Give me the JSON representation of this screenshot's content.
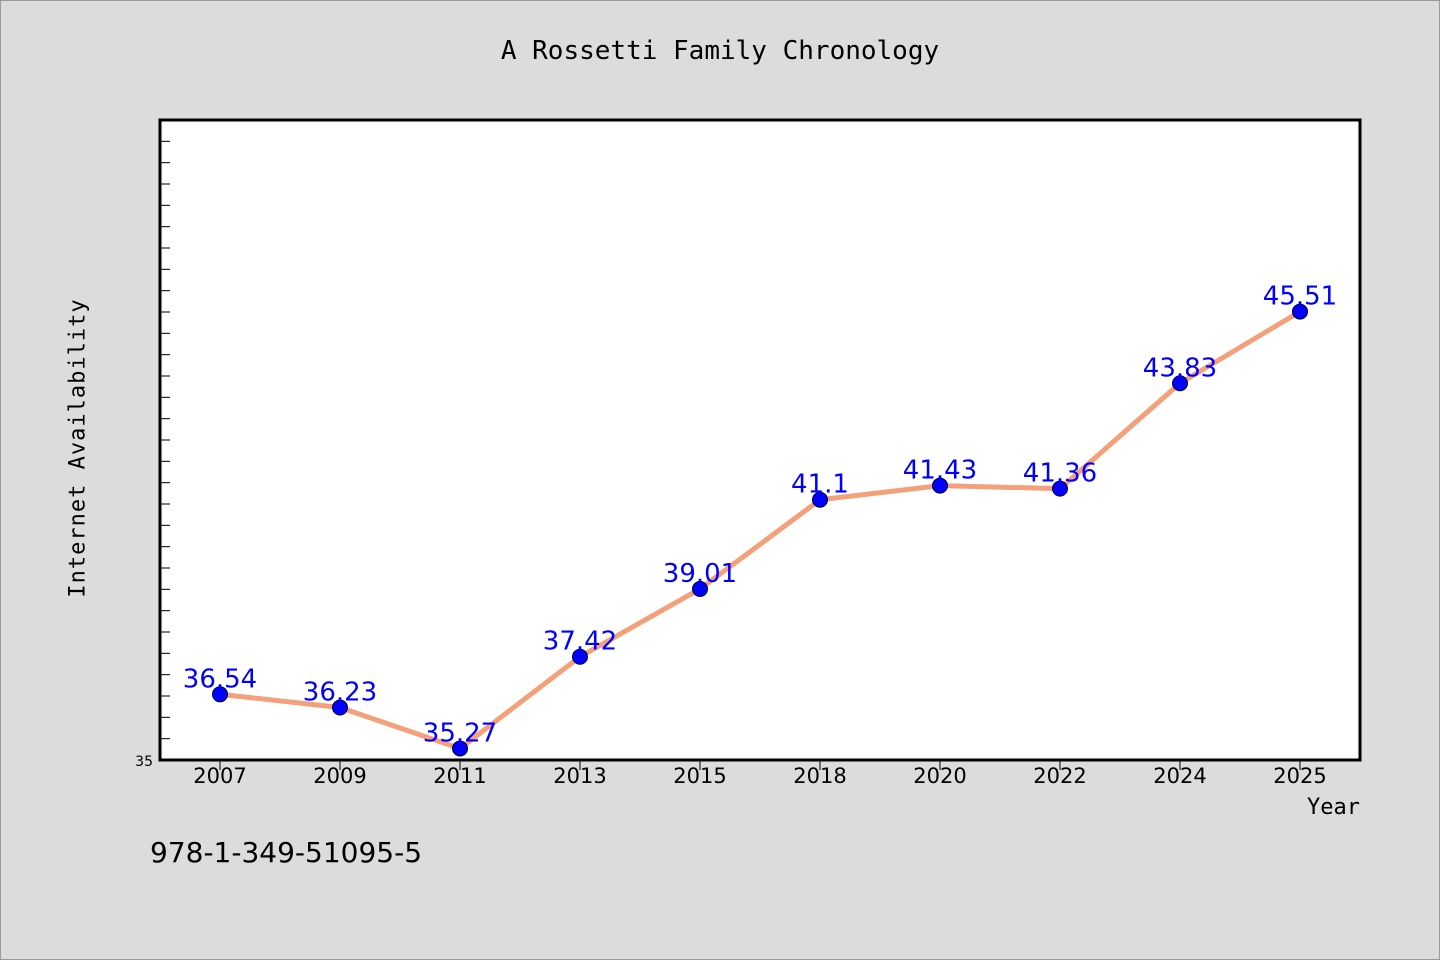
{
  "chart_data": {
    "type": "line",
    "title": "A Rossetti Family Chronology",
    "xlabel": "Year",
    "ylabel": "Internet Availability",
    "categories": [
      "2007",
      "2009",
      "2011",
      "2013",
      "2015",
      "2018",
      "2020",
      "2022",
      "2024",
      "2025"
    ],
    "series": [
      {
        "values": [
          36.54,
          36.23,
          35.27,
          37.42,
          39.01,
          41.1,
          41.43,
          41.36,
          43.83,
          45.51
        ],
        "labels": [
          "36.54",
          "36.23",
          "35.27",
          "37.42",
          "39.01",
          "41.1",
          "41.43",
          "41.36",
          "43.83",
          "45.51"
        ]
      }
    ],
    "ylim": [
      35,
      50
    ],
    "y_tick_label": "35",
    "line_color": "#f4a07a",
    "marker_color": "#0000ff",
    "label_color": "#0000ff",
    "background": "#dcdcdc",
    "plot_background": "#ffffff",
    "grid": false,
    "legend": "none"
  },
  "footer": {
    "code": "978-1-349-51095-5"
  }
}
